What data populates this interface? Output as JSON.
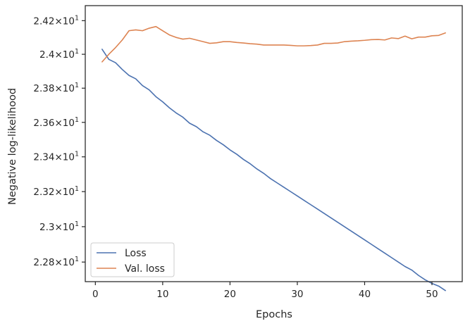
{
  "chart_data": {
    "type": "line",
    "xlabel": "Epochs",
    "ylabel": "Negative log-likelihood",
    "xlim": [
      -1.5,
      54.5
    ],
    "ylim": [
      22.69,
      24.29
    ],
    "y_scale": "log",
    "grid": false,
    "legend_position": "lower-left",
    "x_ticks": [
      0,
      10,
      20,
      30,
      40,
      50
    ],
    "x_tick_labels": [
      "0",
      "10",
      "20",
      "30",
      "40",
      "50"
    ],
    "y_ticks": [
      22.8,
      23.0,
      23.2,
      23.4,
      23.6,
      23.8,
      24.0,
      24.2
    ],
    "y_tick_labels": [
      {
        "base": "2.28",
        "exp": "1"
      },
      {
        "base": "2.3",
        "exp": "1"
      },
      {
        "base": "2.32",
        "exp": "1"
      },
      {
        "base": "2.34",
        "exp": "1"
      },
      {
        "base": "2.36",
        "exp": "1"
      },
      {
        "base": "2.38",
        "exp": "1"
      },
      {
        "base": "2.4",
        "exp": "1"
      },
      {
        "base": "2.42",
        "exp": "1"
      }
    ],
    "x": [
      1,
      2,
      3,
      4,
      5,
      6,
      7,
      8,
      9,
      10,
      11,
      12,
      13,
      14,
      15,
      16,
      17,
      18,
      19,
      20,
      21,
      22,
      23,
      24,
      25,
      26,
      27,
      28,
      29,
      30,
      31,
      32,
      33,
      34,
      35,
      36,
      37,
      38,
      39,
      40,
      41,
      42,
      43,
      44,
      45,
      46,
      47,
      48,
      49,
      50,
      51,
      52
    ],
    "series": [
      {
        "name": "Loss",
        "color": "#4c72b0",
        "values": [
          24.03,
          23.97,
          23.95,
          23.91,
          23.875,
          23.855,
          23.815,
          23.79,
          23.75,
          23.72,
          23.685,
          23.655,
          23.63,
          23.595,
          23.575,
          23.545,
          23.525,
          23.495,
          23.47,
          23.44,
          23.415,
          23.385,
          23.36,
          23.33,
          23.305,
          23.275,
          23.25,
          23.225,
          23.2,
          23.175,
          23.15,
          23.125,
          23.1,
          23.075,
          23.05,
          23.025,
          23.0,
          22.975,
          22.95,
          22.925,
          22.9,
          22.875,
          22.85,
          22.825,
          22.8,
          22.775,
          22.755,
          22.725,
          22.7,
          22.68,
          22.665,
          22.64
        ]
      },
      {
        "name": "Val. loss",
        "color": "#dd8452",
        "values": [
          23.955,
          24.0,
          24.04,
          24.085,
          24.14,
          24.145,
          24.14,
          24.155,
          24.165,
          24.14,
          24.115,
          24.1,
          24.09,
          24.095,
          24.085,
          24.075,
          24.065,
          24.068,
          24.075,
          24.075,
          24.07,
          24.067,
          24.063,
          24.06,
          24.055,
          24.055,
          24.055,
          24.055,
          24.053,
          24.05,
          24.05,
          24.052,
          24.055,
          24.065,
          24.065,
          24.067,
          24.075,
          24.078,
          24.08,
          24.083,
          24.087,
          24.088,
          24.085,
          24.097,
          24.093,
          24.108,
          24.092,
          24.102,
          24.102,
          24.11,
          24.112,
          24.127
        ]
      }
    ]
  }
}
